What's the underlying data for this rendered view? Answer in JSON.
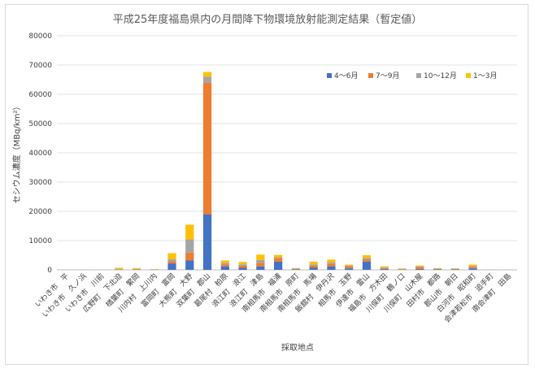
{
  "chart_data": {
    "type": "bar",
    "stacked": true,
    "title": "平成25年度福島県内の月間降下物環境放射能測定結果（暫定値）",
    "xlabel": "採取地点",
    "ylabel": "セシウム濃度（MBq/km²）",
    "ylim": [
      0,
      80000
    ],
    "yticks": [
      "0",
      "10000",
      "20000",
      "30000",
      "40000",
      "50000",
      "60000",
      "70000",
      "80000"
    ],
    "grid": true,
    "legend_position": "top-right",
    "categories": [
      "いわき市　平",
      "いわき市　久ノ浜",
      "いわき市　川前",
      "広野町　下北迫",
      "楢葉町　繁岡",
      "川内村　上川内",
      "富岡町　富岡",
      "大熊町　大野",
      "双葉町　郡山",
      "葛尾村　柏原",
      "浪江町　浪江",
      "浪江町　津島",
      "南相馬市　福浦",
      "南相馬市　原町",
      "南相馬市　馬場",
      "飯舘村　伊丹沢",
      "相馬市　玉野",
      "伊達市　霊山",
      "福島市　方木田",
      "川俣町　鶴ノ口",
      "川俣町　山木屋",
      "田村市　都路",
      "郡山市　朝日",
      "白河市　昭和町",
      "会津若松市　追手町",
      "南会津町　田島"
    ],
    "series": [
      {
        "name": "4～6月",
        "color": "#4472C4",
        "values": [
          30,
          20,
          10,
          100,
          100,
          50,
          2200,
          3200,
          19000,
          1200,
          700,
          1200,
          2800,
          150,
          800,
          1200,
          500,
          2800,
          300,
          100,
          300,
          150,
          150,
          500,
          40,
          20
        ]
      },
      {
        "name": "7～9月",
        "color": "#ED7D31",
        "values": [
          20,
          10,
          10,
          100,
          100,
          50,
          800,
          2700,
          45000,
          700,
          700,
          1200,
          1200,
          150,
          600,
          800,
          600,
          800,
          300,
          100,
          700,
          150,
          100,
          500,
          30,
          10
        ]
      },
      {
        "name": "10～12月",
        "color": "#A5A5A5",
        "values": [
          20,
          10,
          10,
          100,
          100,
          50,
          700,
          4500,
          2000,
          500,
          500,
          1000,
          300,
          100,
          500,
          500,
          300,
          500,
          200,
          100,
          200,
          100,
          100,
          300,
          20,
          10
        ]
      },
      {
        "name": "1～3月",
        "color": "#FFC000",
        "values": [
          30,
          10,
          20,
          400,
          300,
          100,
          2000,
          5000,
          1600,
          800,
          800,
          1800,
          800,
          200,
          900,
          1000,
          400,
          900,
          400,
          200,
          300,
          200,
          200,
          500,
          30,
          20
        ]
      }
    ]
  }
}
